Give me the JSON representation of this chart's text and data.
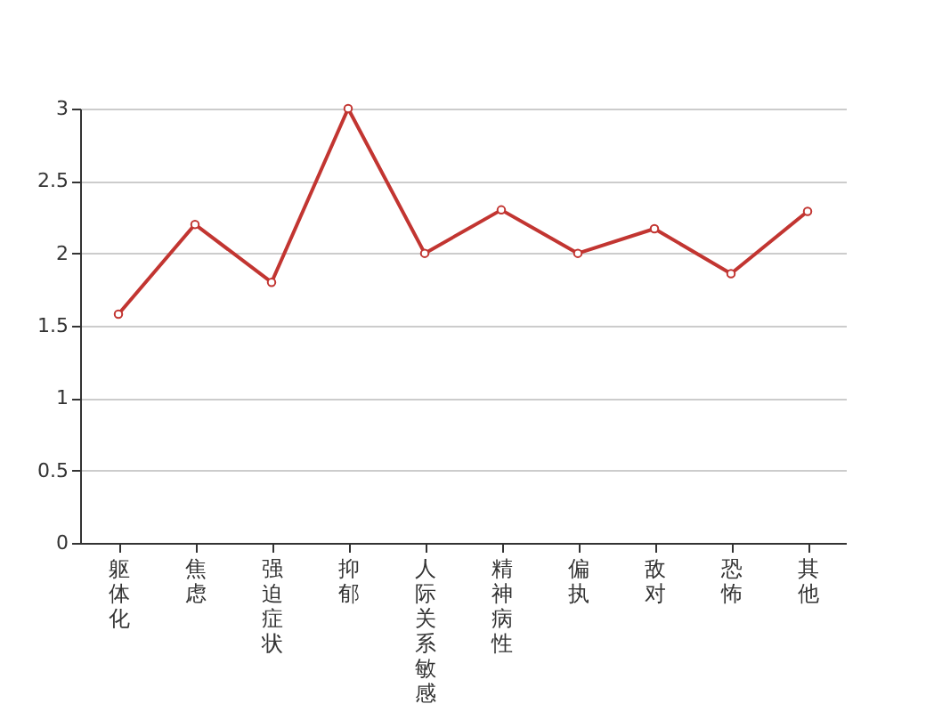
{
  "chart_data": {
    "type": "line",
    "categories": [
      "躯体化",
      "焦虑",
      "强迫症状",
      "抑郁",
      "人际关系敏感",
      "精神病性",
      "偏执",
      "敌对",
      "恐怖",
      "其他"
    ],
    "series": [
      {
        "color": "#c23531",
        "values": [
          1.58,
          2.2,
          1.8,
          3.0,
          2.0,
          2.3,
          2.0,
          2.17,
          1.86,
          2.29
        ]
      }
    ],
    "ylim": [
      0,
      3
    ],
    "yticks": [
      0,
      0.5,
      1,
      1.5,
      2,
      2.5,
      3
    ],
    "grid": "y",
    "marker": "circle",
    "line_style": "solid"
  }
}
